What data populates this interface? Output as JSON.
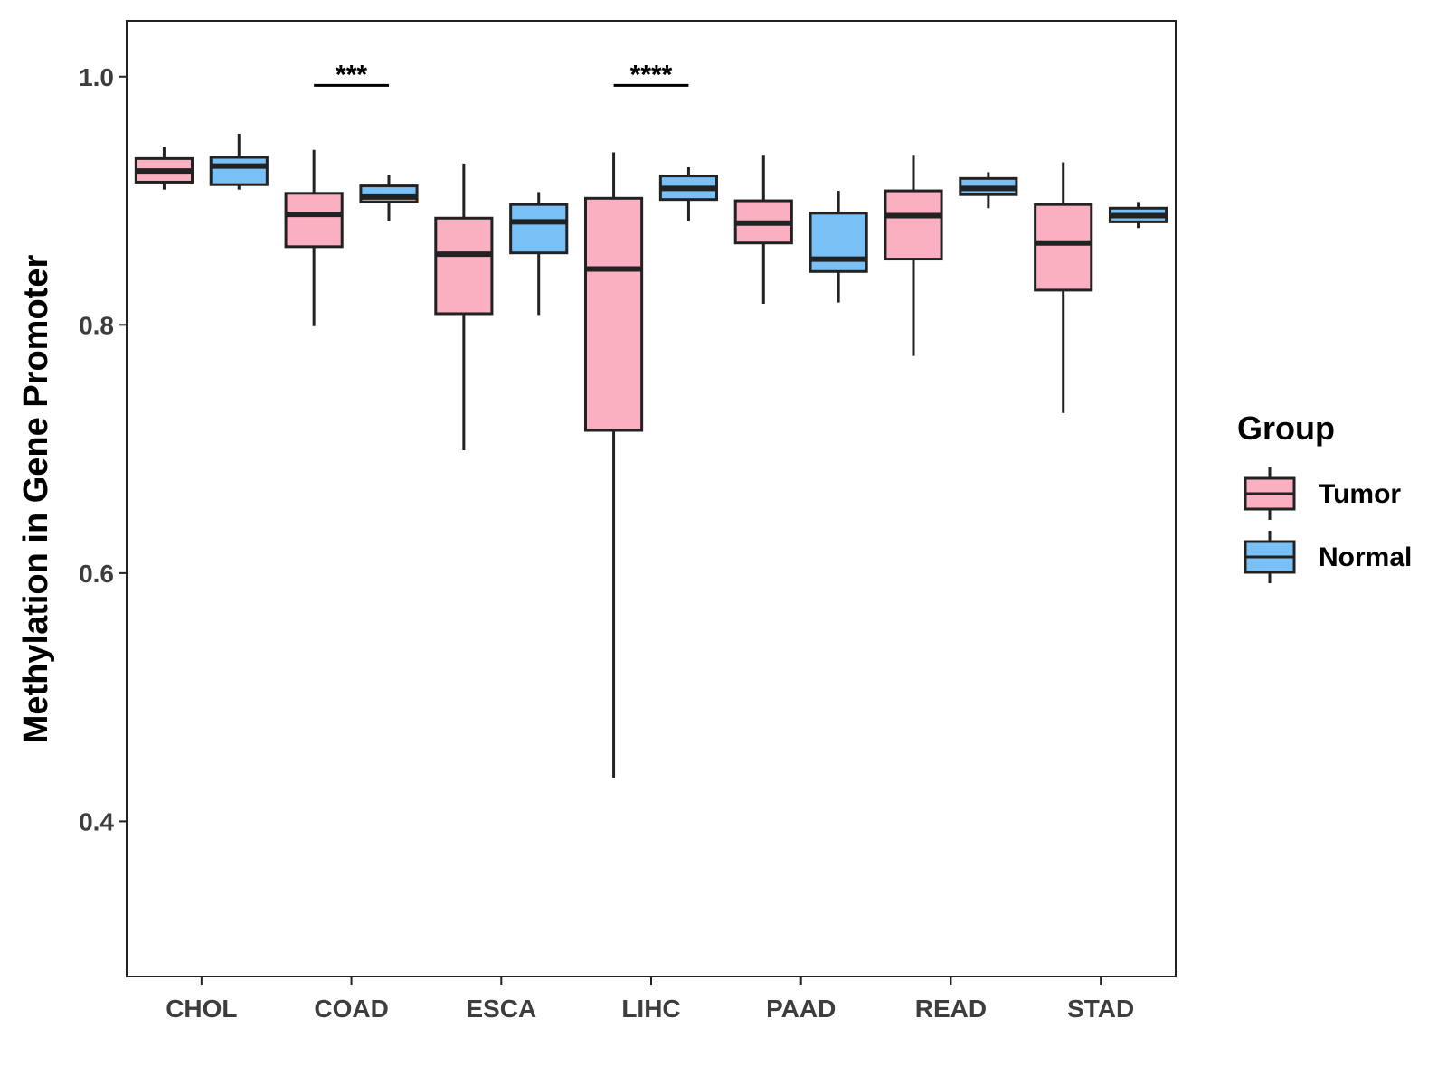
{
  "chart_data": {
    "type": "boxplot",
    "title": "",
    "xlabel": "",
    "ylabel": "Methylation in Gene Promoter",
    "ylim": [
      0.275,
      1.045
    ],
    "yticks": [
      0.4,
      0.6,
      0.8,
      1.0
    ],
    "ytick_labels": [
      "0.4",
      "0.6",
      "0.8",
      "1.0"
    ],
    "categories": [
      "CHOL",
      "COAD",
      "ESCA",
      "LIHC",
      "PAAD",
      "READ",
      "STAD"
    ],
    "legend": {
      "title": "Group",
      "position": "right",
      "entries": [
        "Tumor",
        "Normal"
      ]
    },
    "colors": {
      "Tumor": "#fbb0c2",
      "Normal": "#79c0f7",
      "outline": "#222222"
    },
    "series": [
      {
        "name": "Tumor",
        "boxes": [
          {
            "category": "CHOL",
            "min": 0.909,
            "q1": 0.915,
            "median": 0.924,
            "q3": 0.934,
            "max": 0.943
          },
          {
            "category": "COAD",
            "min": 0.799,
            "q1": 0.863,
            "median": 0.889,
            "q3": 0.906,
            "max": 0.941
          },
          {
            "category": "ESCA",
            "min": 0.699,
            "q1": 0.809,
            "median": 0.857,
            "q3": 0.886,
            "max": 0.93
          },
          {
            "category": "LIHC",
            "min": 0.435,
            "q1": 0.715,
            "median": 0.845,
            "q3": 0.902,
            "max": 0.939
          },
          {
            "category": "PAAD",
            "min": 0.817,
            "q1": 0.866,
            "median": 0.882,
            "q3": 0.9,
            "max": 0.937
          },
          {
            "category": "READ",
            "min": 0.775,
            "q1": 0.853,
            "median": 0.888,
            "q3": 0.908,
            "max": 0.937
          },
          {
            "category": "STAD",
            "min": 0.729,
            "q1": 0.828,
            "median": 0.866,
            "q3": 0.897,
            "max": 0.931
          }
        ]
      },
      {
        "name": "Normal",
        "boxes": [
          {
            "category": "CHOL",
            "min": 0.909,
            "q1": 0.913,
            "median": 0.928,
            "q3": 0.935,
            "max": 0.954
          },
          {
            "category": "COAD",
            "min": 0.884,
            "q1": 0.899,
            "median": 0.903,
            "q3": 0.912,
            "max": 0.921
          },
          {
            "category": "ESCA",
            "min": 0.808,
            "q1": 0.858,
            "median": 0.883,
            "q3": 0.897,
            "max": 0.907
          },
          {
            "category": "LIHC",
            "min": 0.884,
            "q1": 0.901,
            "median": 0.91,
            "q3": 0.92,
            "max": 0.927
          },
          {
            "category": "PAAD",
            "min": 0.818,
            "q1": 0.843,
            "median": 0.853,
            "q3": 0.89,
            "max": 0.908
          },
          {
            "category": "READ",
            "min": 0.894,
            "q1": 0.905,
            "median": 0.91,
            "q3": 0.918,
            "max": 0.923
          },
          {
            "category": "STAD",
            "min": 0.878,
            "q1": 0.883,
            "median": 0.888,
            "q3": 0.894,
            "max": 0.899
          }
        ]
      }
    ],
    "significance": [
      {
        "category": "COAD",
        "label": "***",
        "y": 0.993
      },
      {
        "category": "LIHC",
        "label": "****",
        "y": 0.993
      }
    ]
  }
}
